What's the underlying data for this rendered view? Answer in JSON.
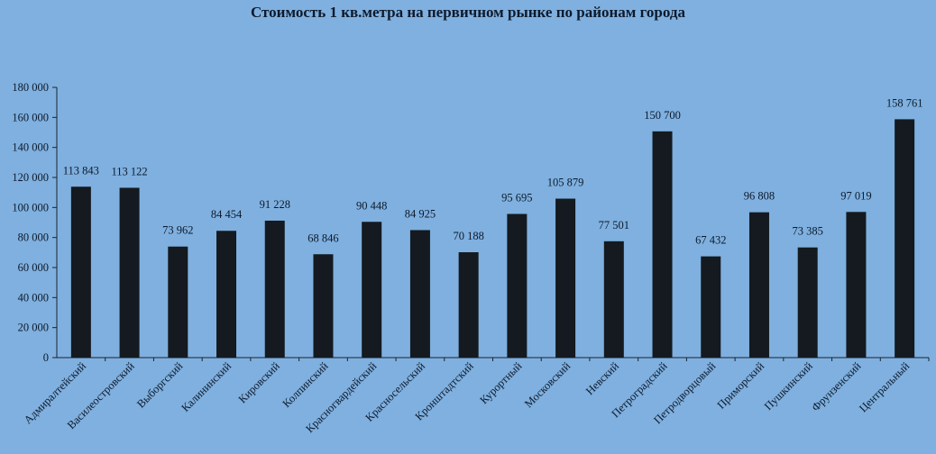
{
  "chart_data": {
    "type": "bar",
    "title": "Стоимость 1 кв.метра на первичном  рынке по районам  города",
    "xlabel": "",
    "ylabel": "",
    "ylim": [
      0,
      180000
    ],
    "yticks": [
      "0",
      "20 000",
      "40 000",
      "60 000",
      "80 000",
      "100 000",
      "120 000",
      "140 000",
      "160 000",
      "180 000"
    ],
    "grid": false,
    "categories": [
      "Адмиралтейский",
      "Василеостровский",
      "Выборгский",
      "Калининский",
      "Кировский",
      "Колпинский",
      "Красногвардейский",
      "Красносельский",
      "Кронштадтский",
      "Курортный",
      "Московский",
      "Невский",
      "Петроградский",
      "Петродворцовый",
      "Приморский",
      "Пушкинский",
      "Фрунзенский",
      "Центральный"
    ],
    "values": [
      113843,
      113122,
      73962,
      84454,
      91228,
      68846,
      90448,
      84925,
      70188,
      95695,
      105879,
      77501,
      150700,
      67432,
      96808,
      73385,
      97019,
      158761
    ],
    "data_labels": [
      "113 843",
      "113 122",
      "73 962",
      "84 454",
      "91 228",
      "68 846",
      "90 448",
      "84 925",
      "70 188",
      "95 695",
      "105 879",
      "77 501",
      "150 700",
      "67 432",
      "96 808",
      "73 385",
      "97 019",
      "158 761"
    ],
    "colors": {
      "background": "#7fb0df",
      "bar": "#141a1f",
      "text": "#0e1a2c",
      "axis": "#1a2430"
    }
  }
}
